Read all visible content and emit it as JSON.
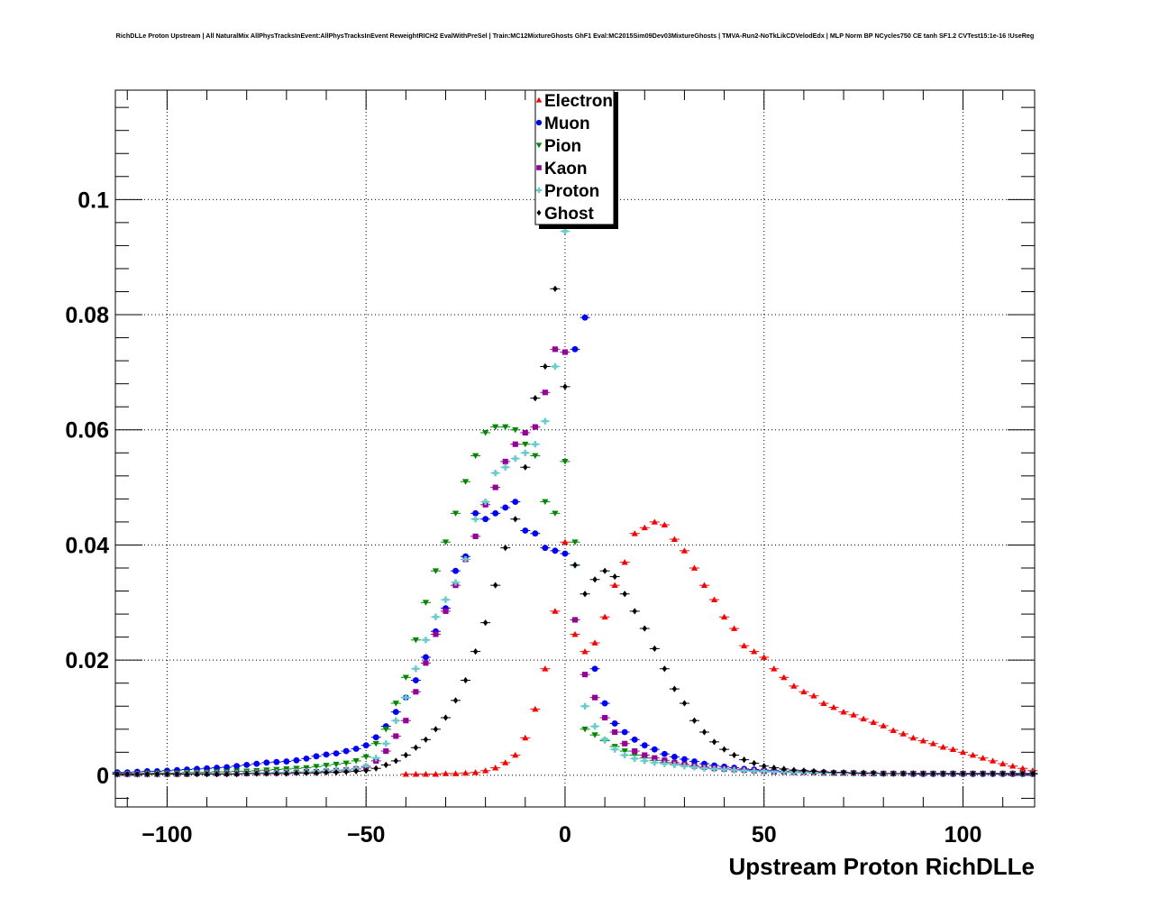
{
  "chart_data": {
    "type": "scatter",
    "title": "RichDLLe Proton Upstream | All NaturalMix AllPhysTracksInEvent:AllPhysTracksInEvent ReweightRICH2 EvalWithPreSel | Train:MC12MixtureGhosts GhF1 Eval:MC2015Sim09Dev03MixtureGhosts | TMVA-Run2-NoTkLikCDVelodEdx | MLP Norm BP NCycles750 CE tanh SF1.2 CVTest15:1e-16 !UseReg",
    "xlabel": "Upstream Proton RichDLLe",
    "ylabel": "",
    "xlim": [
      -113,
      118
    ],
    "ylim": [
      -0.0055,
      0.119
    ],
    "grid": true,
    "legend_position": "top-center",
    "x_ticks": [
      -100,
      -50,
      0,
      50,
      100
    ],
    "x_tick_labels": [
      "−100",
      "−50",
      "0",
      "50",
      "100"
    ],
    "y_ticks": [
      0,
      0.02,
      0.04,
      0.06,
      0.08,
      0.1
    ],
    "y_tick_labels": [
      "0",
      "0.02",
      "0.04",
      "0.06",
      "0.08",
      "0.1"
    ],
    "series": [
      {
        "name": "Electron",
        "color": "#ff0000",
        "marker": "triangle-up",
        "x": [
          -40,
          -37.5,
          -35,
          -32.5,
          -30,
          -27.5,
          -25,
          -22.5,
          -20,
          -17.5,
          -15,
          -12.5,
          -10,
          -7.5,
          -5,
          -2.5,
          0,
          2.5,
          5,
          7.5,
          10,
          12.5,
          15,
          17.5,
          20,
          22.5,
          25,
          27.5,
          30,
          32.5,
          35,
          37.5,
          40,
          42.5,
          45,
          47.5,
          50,
          52.5,
          55,
          57.5,
          60,
          62.5,
          65,
          67.5,
          70,
          72.5,
          75,
          77.5,
          80,
          82.5,
          85,
          87.5,
          90,
          92.5,
          95,
          97.5,
          100,
          102.5,
          105,
          107.5,
          110,
          112.5,
          115,
          117.5
        ],
        "y": [
          0.0002,
          0.0002,
          0.0002,
          0.0002,
          0.0003,
          0.0003,
          0.0004,
          0.0005,
          0.0008,
          0.0013,
          0.0022,
          0.0035,
          0.0065,
          0.0115,
          0.0185,
          0.0285,
          0.0405,
          0.0245,
          0.0215,
          0.023,
          0.0275,
          0.033,
          0.037,
          0.042,
          0.043,
          0.044,
          0.0435,
          0.041,
          0.039,
          0.036,
          0.033,
          0.0305,
          0.0275,
          0.0255,
          0.0225,
          0.0215,
          0.0205,
          0.0185,
          0.017,
          0.0155,
          0.0145,
          0.0138,
          0.0125,
          0.0118,
          0.011,
          0.0105,
          0.0098,
          0.0092,
          0.0086,
          0.0078,
          0.0072,
          0.0065,
          0.006,
          0.0055,
          0.0049,
          0.0045,
          0.004,
          0.0035,
          0.003,
          0.0025,
          0.002,
          0.0016,
          0.0012,
          0.0008
        ]
      },
      {
        "name": "Muon",
        "color": "#0000ff",
        "marker": "circle",
        "x": [
          -112.5,
          -110,
          -107.5,
          -105,
          -102.5,
          -100,
          -97.5,
          -95,
          -92.5,
          -90,
          -87.5,
          -85,
          -82.5,
          -80,
          -77.5,
          -75,
          -72.5,
          -70,
          -67.5,
          -65,
          -62.5,
          -60,
          -57.5,
          -55,
          -52.5,
          -50,
          -47.5,
          -45,
          -42.5,
          -40,
          -37.5,
          -35,
          -32.5,
          -30,
          -27.5,
          -25,
          -22.5,
          -20,
          -17.5,
          -15,
          -12.5,
          -10,
          -7.5,
          -5,
          -2.5,
          0,
          2.5,
          5,
          7.5,
          10,
          12.5,
          15,
          17.5,
          20,
          22.5,
          25,
          27.5,
          30,
          32.5,
          35,
          37.5,
          40,
          42.5,
          45,
          47.5,
          50,
          52.5,
          55,
          57.5,
          60,
          62.5,
          65,
          67.5,
          70,
          72.5,
          75,
          77.5,
          80,
          82.5,
          85,
          87.5,
          90,
          92.5,
          95,
          97.5,
          100,
          102.5,
          105,
          107.5,
          110,
          112.5,
          115,
          117.5
        ],
        "y": [
          0.0005,
          0.0005,
          0.0006,
          0.0007,
          0.0007,
          0.0008,
          0.0009,
          0.001,
          0.0011,
          0.0012,
          0.0013,
          0.0014,
          0.0016,
          0.0018,
          0.002,
          0.0022,
          0.0023,
          0.0024,
          0.0026,
          0.0029,
          0.0033,
          0.0036,
          0.0038,
          0.0042,
          0.0046,
          0.0052,
          0.0066,
          0.0085,
          0.011,
          0.0135,
          0.0165,
          0.0205,
          0.025,
          0.029,
          0.0355,
          0.038,
          0.0455,
          0.0445,
          0.0455,
          0.0465,
          0.0475,
          0.0425,
          0.042,
          0.0395,
          0.039,
          0.0385,
          0.074,
          0.0795,
          0.0185,
          0.0125,
          0.009,
          0.0075,
          0.0062,
          0.0052,
          0.0045,
          0.0037,
          0.0032,
          0.0028,
          0.0024,
          0.002,
          0.0017,
          0.0015,
          0.0013,
          0.0011,
          0.001,
          0.0009,
          0.0008,
          0.0007,
          0.0006,
          0.0006,
          0.0005,
          0.0005,
          0.0004,
          0.0004,
          0.0004,
          0.0003,
          0.0003,
          0.0003,
          0.0003,
          0.0003,
          0.0002,
          0.0002,
          0.0002,
          0.0002,
          0.0002,
          0.0002,
          0.0002,
          0.0002,
          0.0002,
          0.0002,
          0.0002,
          0.0002,
          0.0002
        ]
      },
      {
        "name": "Pion",
        "color": "#008800",
        "marker": "triangle-down",
        "x": [
          -112.5,
          -110,
          -107.5,
          -105,
          -102.5,
          -100,
          -97.5,
          -95,
          -92.5,
          -90,
          -87.5,
          -85,
          -82.5,
          -80,
          -77.5,
          -75,
          -72.5,
          -70,
          -67.5,
          -65,
          -62.5,
          -60,
          -57.5,
          -55,
          -52.5,
          -50,
          -47.5,
          -45,
          -42.5,
          -40,
          -37.5,
          -35,
          -32.5,
          -30,
          -27.5,
          -25,
          -22.5,
          -20,
          -17.5,
          -15,
          -12.5,
          -10,
          -7.5,
          -5,
          -2.5,
          0,
          2.5,
          5,
          7.5,
          10,
          12.5,
          15,
          17.5,
          20,
          22.5,
          25,
          27.5,
          30,
          32.5,
          35,
          37.5,
          40,
          42.5,
          45,
          47.5,
          50,
          52.5,
          55,
          57.5,
          60,
          62.5,
          65,
          67.5,
          70,
          72.5,
          75,
          77.5,
          80,
          82.5,
          85,
          87.5,
          90,
          92.5,
          95,
          97.5,
          100,
          102.5,
          105,
          107.5,
          110,
          112.5,
          115,
          117.5
        ],
        "y": [
          0.0003,
          0.0003,
          0.0003,
          0.0004,
          0.0004,
          0.0004,
          0.0004,
          0.0005,
          0.0005,
          0.0005,
          0.0006,
          0.0006,
          0.0007,
          0.0007,
          0.0008,
          0.0009,
          0.001,
          0.0011,
          0.0012,
          0.0013,
          0.0015,
          0.0017,
          0.0019,
          0.0021,
          0.0025,
          0.0032,
          0.0055,
          0.008,
          0.0125,
          0.017,
          0.0235,
          0.03,
          0.0355,
          0.0405,
          0.0455,
          0.051,
          0.0555,
          0.0595,
          0.0605,
          0.0605,
          0.06,
          0.0575,
          0.0555,
          0.0475,
          0.0455,
          0.0545,
          0.0405,
          0.008,
          0.007,
          0.006,
          0.005,
          0.0042,
          0.0035,
          0.003,
          0.0026,
          0.0022,
          0.0019,
          0.0016,
          0.0014,
          0.0012,
          0.0011,
          0.001,
          0.0009,
          0.0008,
          0.0007,
          0.0006,
          0.0006,
          0.0005,
          0.0005,
          0.0005,
          0.0004,
          0.0004,
          0.0004,
          0.0004,
          0.0003,
          0.0003,
          0.0003,
          0.0003,
          0.0003,
          0.0003,
          0.0003,
          0.0003,
          0.0003,
          0.0003,
          0.0003,
          0.0003,
          0.0003,
          0.0003,
          0.0003,
          0.0003,
          0.0003,
          0.0003,
          0.0003
        ]
      },
      {
        "name": "Kaon",
        "color": "#990099",
        "marker": "square",
        "x": [
          -112.5,
          -110,
          -107.5,
          -105,
          -102.5,
          -100,
          -97.5,
          -95,
          -92.5,
          -90,
          -87.5,
          -85,
          -82.5,
          -80,
          -77.5,
          -75,
          -72.5,
          -70,
          -67.5,
          -65,
          -62.5,
          -60,
          -57.5,
          -55,
          -52.5,
          -50,
          -47.5,
          -45,
          -42.5,
          -40,
          -37.5,
          -35,
          -32.5,
          -30,
          -27.5,
          -25,
          -22.5,
          -20,
          -17.5,
          -15,
          -12.5,
          -10,
          -7.5,
          -5,
          -2.5,
          0,
          2.5,
          5,
          7.5,
          10,
          12.5,
          15,
          17.5,
          20,
          22.5,
          25,
          27.5,
          30,
          32.5,
          35,
          37.5,
          40,
          42.5,
          45,
          47.5,
          50,
          52.5,
          55,
          57.5,
          60,
          62.5,
          65,
          67.5,
          70,
          72.5,
          75,
          77.5,
          80,
          82.5,
          85,
          87.5,
          90,
          92.5,
          95,
          97.5,
          100,
          102.5,
          105,
          107.5,
          110,
          112.5,
          115,
          117.5
        ],
        "y": [
          0.0002,
          0.0002,
          0.0002,
          0.0002,
          0.0002,
          0.0002,
          0.0002,
          0.0002,
          0.0003,
          0.0003,
          0.0003,
          0.0003,
          0.0003,
          0.0003,
          0.0004,
          0.0004,
          0.0004,
          0.0005,
          0.0005,
          0.0006,
          0.0006,
          0.0007,
          0.0008,
          0.0009,
          0.0011,
          0.0014,
          0.0025,
          0.0042,
          0.0068,
          0.0095,
          0.0145,
          0.0195,
          0.0245,
          0.0285,
          0.033,
          0.0375,
          0.0415,
          0.047,
          0.05,
          0.0545,
          0.0575,
          0.0595,
          0.0605,
          0.0665,
          0.074,
          0.0735,
          0.027,
          0.0175,
          0.0135,
          0.01,
          0.0075,
          0.0055,
          0.0042,
          0.0035,
          0.003,
          0.0026,
          0.0022,
          0.0019,
          0.0016,
          0.0014,
          0.0012,
          0.0011,
          0.001,
          0.0009,
          0.0008,
          0.0007,
          0.0006,
          0.0006,
          0.0005,
          0.0005,
          0.0005,
          0.0004,
          0.0004,
          0.0004,
          0.0004,
          0.0003,
          0.0003,
          0.0003,
          0.0003,
          0.0003,
          0.0003,
          0.0003,
          0.0003,
          0.0003,
          0.0003,
          0.0003,
          0.0003,
          0.0003,
          0.0003,
          0.0003,
          0.0003,
          0.0003,
          0.0003
        ]
      },
      {
        "name": "Proton",
        "color": "#66cccc",
        "marker": "cross",
        "x": [
          -112.5,
          -110,
          -107.5,
          -105,
          -102.5,
          -100,
          -97.5,
          -95,
          -92.5,
          -90,
          -87.5,
          -85,
          -82.5,
          -80,
          -77.5,
          -75,
          -72.5,
          -70,
          -67.5,
          -65,
          -62.5,
          -60,
          -57.5,
          -55,
          -52.5,
          -50,
          -47.5,
          -45,
          -42.5,
          -40,
          -37.5,
          -35,
          -32.5,
          -30,
          -27.5,
          -25,
          -22.5,
          -20,
          -17.5,
          -15,
          -12.5,
          -10,
          -7.5,
          -5,
          -2.5,
          0,
          2.5,
          5,
          7.5,
          10,
          12.5,
          15,
          17.5,
          20,
          22.5,
          25,
          27.5,
          30,
          32.5,
          35,
          37.5,
          40,
          42.5,
          45,
          47.5,
          50,
          52.5,
          55,
          57.5,
          60,
          62.5,
          65,
          67.5,
          70,
          72.5,
          75,
          77.5,
          80,
          82.5,
          85,
          87.5,
          90,
          92.5,
          95,
          97.5,
          100,
          102.5,
          105,
          107.5,
          110,
          112.5,
          115,
          117.5
        ],
        "y": [
          0.0002,
          0.0002,
          0.0002,
          0.0002,
          0.0002,
          0.0002,
          0.0002,
          0.0003,
          0.0003,
          0.0003,
          0.0003,
          0.0003,
          0.0003,
          0.0004,
          0.0004,
          0.0004,
          0.0005,
          0.0005,
          0.0006,
          0.0006,
          0.0007,
          0.0008,
          0.0009,
          0.001,
          0.0012,
          0.0016,
          0.003,
          0.0055,
          0.0095,
          0.0135,
          0.0185,
          0.0235,
          0.0275,
          0.0305,
          0.0335,
          0.0375,
          0.0445,
          0.0475,
          0.0525,
          0.0535,
          0.055,
          0.056,
          0.0575,
          0.0615,
          0.071,
          0.0945,
          0.0365,
          0.012,
          0.0085,
          0.0062,
          0.0045,
          0.0035,
          0.0029,
          0.0025,
          0.0022,
          0.002,
          0.0018,
          0.0016,
          0.0014,
          0.0012,
          0.0011,
          0.001,
          0.0009,
          0.0008,
          0.0007,
          0.0007,
          0.0006,
          0.0006,
          0.0005,
          0.0005,
          0.0005,
          0.0004,
          0.0004,
          0.0004,
          0.0004,
          0.0004,
          0.0003,
          0.0003,
          0.0003,
          0.0003,
          0.0003,
          0.0003,
          0.0003,
          0.0003,
          0.0003,
          0.0003,
          0.0003,
          0.0003,
          0.0003,
          0.0003,
          0.0003,
          0.0003,
          0.0003
        ]
      },
      {
        "name": "Ghost",
        "color": "#000000",
        "marker": "diamond",
        "x": [
          -112.5,
          -110,
          -107.5,
          -105,
          -102.5,
          -100,
          -97.5,
          -95,
          -92.5,
          -90,
          -87.5,
          -85,
          -82.5,
          -80,
          -77.5,
          -75,
          -72.5,
          -70,
          -67.5,
          -65,
          -62.5,
          -60,
          -57.5,
          -55,
          -52.5,
          -50,
          -47.5,
          -45,
          -42.5,
          -40,
          -37.5,
          -35,
          -32.5,
          -30,
          -27.5,
          -25,
          -22.5,
          -20,
          -17.5,
          -15,
          -12.5,
          -10,
          -7.5,
          -5,
          -2.5,
          0,
          2.5,
          5,
          7.5,
          10,
          12.5,
          15,
          17.5,
          20,
          22.5,
          25,
          27.5,
          30,
          32.5,
          35,
          37.5,
          40,
          42.5,
          45,
          47.5,
          50,
          52.5,
          55,
          57.5,
          60,
          62.5,
          65,
          67.5,
          70,
          72.5,
          75,
          77.5,
          80,
          82.5,
          85,
          87.5,
          90,
          92.5,
          95,
          97.5,
          100,
          102.5,
          105,
          107.5,
          110,
          112.5,
          115,
          117.5
        ],
        "y": [
          0.0002,
          0.0002,
          0.0002,
          0.0002,
          0.0002,
          0.0002,
          0.0002,
          0.0002,
          0.0002,
          0.0002,
          0.0002,
          0.0002,
          0.0002,
          0.0003,
          0.0003,
          0.0003,
          0.0003,
          0.0003,
          0.0004,
          0.0004,
          0.0004,
          0.0005,
          0.0005,
          0.0006,
          0.0007,
          0.0008,
          0.0012,
          0.0018,
          0.0025,
          0.0035,
          0.0048,
          0.0062,
          0.008,
          0.01,
          0.013,
          0.0165,
          0.0215,
          0.0265,
          0.033,
          0.0395,
          0.0445,
          0.0535,
          0.0655,
          0.071,
          0.0845,
          0.0675,
          0.0365,
          0.0315,
          0.034,
          0.0355,
          0.0345,
          0.0315,
          0.0285,
          0.0255,
          0.022,
          0.0185,
          0.015,
          0.0125,
          0.0095,
          0.0075,
          0.0058,
          0.0045,
          0.0035,
          0.0027,
          0.0021,
          0.0016,
          0.0013,
          0.0011,
          0.0009,
          0.0008,
          0.0007,
          0.0006,
          0.0005,
          0.0005,
          0.0004,
          0.0004,
          0.0004,
          0.0003,
          0.0003,
          0.0003,
          0.0003,
          0.0003,
          0.0003,
          0.0003,
          0.0003,
          0.0003,
          0.0003,
          0.0003,
          0.0003,
          0.0003,
          0.0003,
          0.0003,
          0.0003
        ]
      }
    ]
  }
}
